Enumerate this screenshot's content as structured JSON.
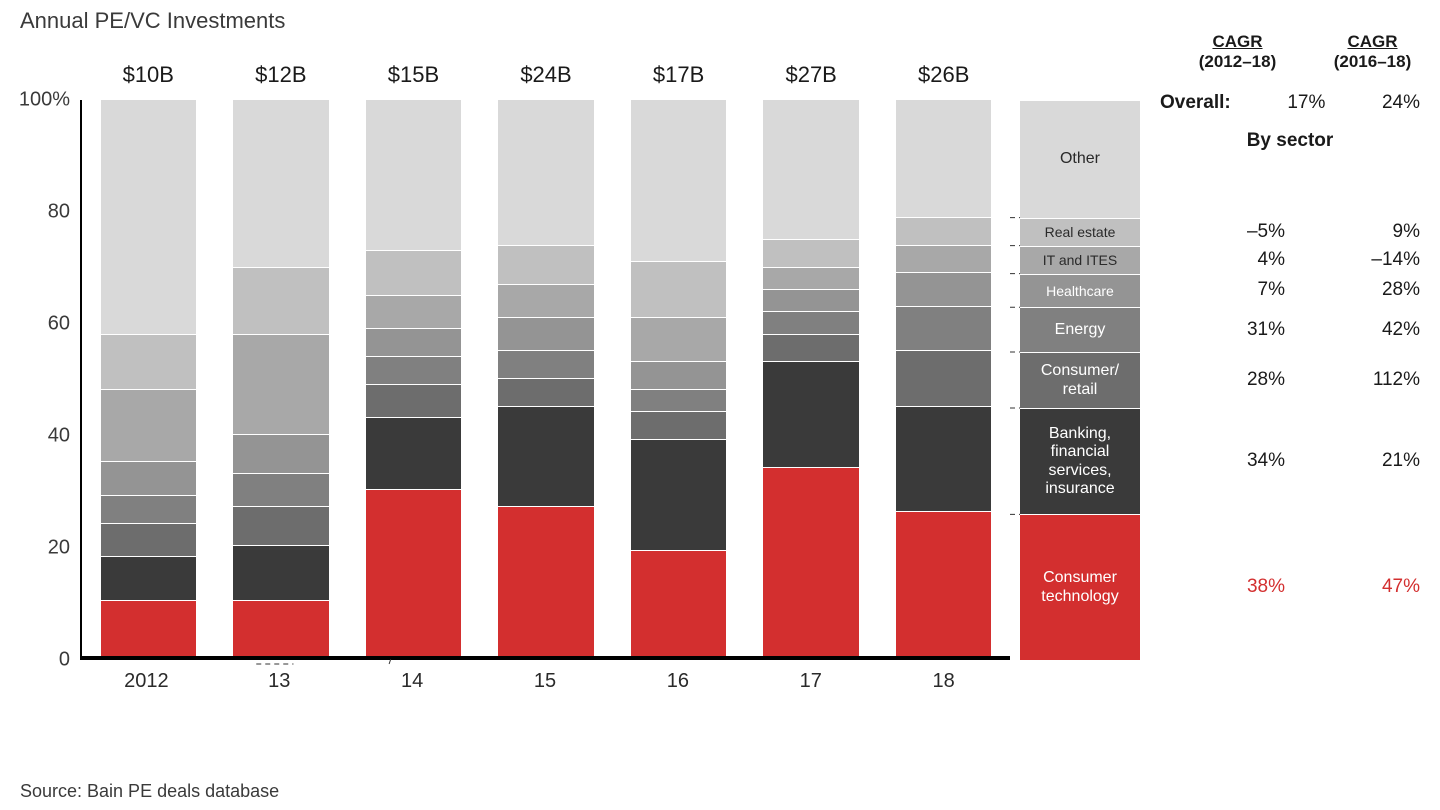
{
  "title": "Annual PE/VC Investments",
  "source": "Source: Bain PE deals database",
  "chart": {
    "type": "stacked-bar-100pct",
    "y_axis": {
      "min": 0,
      "max": 100,
      "tick_step": 20,
      "suffix_on_max": "%",
      "label_fontsize": 20
    },
    "background_color": "#ffffff",
    "axis_color": "#000000",
    "connector_color": "#333333",
    "bar_gap_fill": "#ffffff",
    "categories": [
      "2012",
      "13",
      "14",
      "15",
      "16",
      "17",
      "18"
    ],
    "totals": [
      "$10B",
      "$12B",
      "$15B",
      "$24B",
      "$17B",
      "$27B",
      "$26B"
    ],
    "sectors": [
      {
        "key": "consumer_tech",
        "label": "Consumer technology",
        "color": "#d32f2f",
        "text_dark": false
      },
      {
        "key": "bfsi",
        "label": "Banking, financial services, insurance",
        "color": "#3a3a3a",
        "text_dark": false
      },
      {
        "key": "consumer_retail",
        "label": "Consumer/ retail",
        "color": "#6d6d6d",
        "text_dark": false
      },
      {
        "key": "energy",
        "label": "Energy",
        "color": "#808080",
        "text_dark": false
      },
      {
        "key": "healthcare",
        "label": "Healthcare",
        "color": "#949494",
        "text_dark": false
      },
      {
        "key": "it_ites",
        "label": "IT and ITES",
        "color": "#a8a8a8",
        "text_dark": true
      },
      {
        "key": "real_estate",
        "label": "Real estate",
        "color": "#c0c0c0",
        "text_dark": true
      },
      {
        "key": "other",
        "label": "Other",
        "color": "#d9d9d9",
        "text_dark": true
      }
    ],
    "values_pct": {
      "2012": {
        "consumer_tech": 10,
        "bfsi": 8,
        "consumer_retail": 6,
        "energy": 5,
        "healthcare": 6,
        "it_ites": 13,
        "real_estate": 10,
        "other": 42
      },
      "13": {
        "consumer_tech": 10,
        "bfsi": 10,
        "consumer_retail": 7,
        "energy": 6,
        "healthcare": 7,
        "it_ites": 18,
        "real_estate": 12,
        "other": 30
      },
      "14": {
        "consumer_tech": 30,
        "bfsi": 13,
        "consumer_retail": 6,
        "energy": 5,
        "healthcare": 5,
        "it_ites": 6,
        "real_estate": 8,
        "other": 27
      },
      "15": {
        "consumer_tech": 27,
        "bfsi": 18,
        "consumer_retail": 5,
        "energy": 5,
        "healthcare": 6,
        "it_ites": 6,
        "real_estate": 7,
        "other": 26
      },
      "16": {
        "consumer_tech": 19,
        "bfsi": 20,
        "consumer_retail": 5,
        "energy": 4,
        "healthcare": 5,
        "it_ites": 8,
        "real_estate": 10,
        "other": 29
      },
      "17": {
        "consumer_tech": 34,
        "bfsi": 19,
        "consumer_retail": 5,
        "energy": 4,
        "healthcare": 4,
        "it_ites": 4,
        "real_estate": 5,
        "other": 25
      },
      "18": {
        "consumer_tech": 26,
        "bfsi": 19,
        "consumer_retail": 10,
        "energy": 8,
        "healthcare": 6,
        "it_ites": 5,
        "real_estate": 5,
        "other": 21
      }
    },
    "legend_bar_year": "18",
    "legend_heights_pct": {
      "consumer_tech": 26,
      "bfsi": 19,
      "consumer_retail": 10,
      "energy": 8,
      "healthcare": 6,
      "it_ites": 5,
      "real_estate": 5,
      "other": 21
    }
  },
  "cagr": {
    "header1": {
      "line1": "CAGR",
      "line2": "(2012–18)"
    },
    "header2": {
      "line1": "CAGR",
      "line2": "(2016–18)"
    },
    "overall_label": "Overall:",
    "overall": {
      "c1": "17%",
      "c2": "24%"
    },
    "by_sector_label": "By sector",
    "rows": [
      {
        "sector": "real_estate",
        "c1": "–5%",
        "c2": "9%",
        "highlight": false
      },
      {
        "sector": "it_ites",
        "c1": "4%",
        "c2": "–14%",
        "highlight": false
      },
      {
        "sector": "healthcare",
        "c1": "7%",
        "c2": "28%",
        "highlight": false
      },
      {
        "sector": "energy",
        "c1": "31%",
        "c2": "42%",
        "highlight": false
      },
      {
        "sector": "consumer_retail",
        "c1": "28%",
        "c2": "112%",
        "highlight": false
      },
      {
        "sector": "bfsi",
        "c1": "34%",
        "c2": "21%",
        "highlight": false
      },
      {
        "sector": "consumer_tech",
        "c1": "38%",
        "c2": "47%",
        "highlight": true
      }
    ]
  }
}
